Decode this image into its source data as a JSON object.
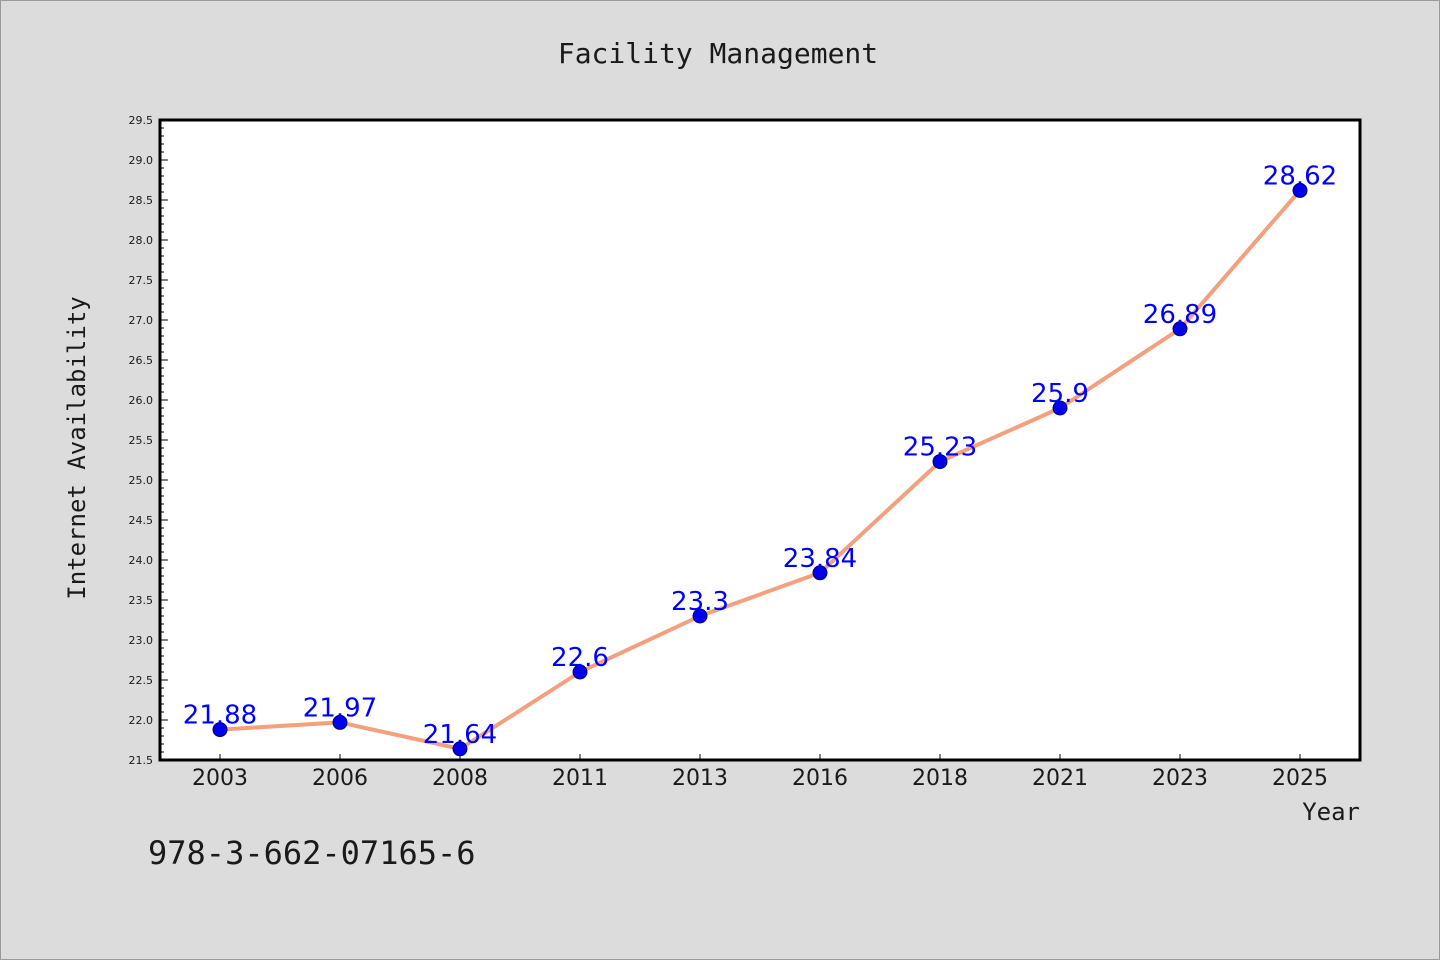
{
  "chart_data": {
    "type": "line",
    "title": "Facility Management",
    "xlabel": "Year",
    "ylabel": "Internet Availability",
    "categories": [
      "2003",
      "2006",
      "2008",
      "2011",
      "2013",
      "2016",
      "2018",
      "2021",
      "2023",
      "2025"
    ],
    "series": [
      {
        "values": [
          21.88,
          21.97,
          21.64,
          22.6,
          23.3,
          23.84,
          25.23,
          25.9,
          26.89,
          28.62
        ],
        "data_labels": [
          "21.88",
          "21.97",
          "21.64",
          "22.6",
          "23.3",
          "23.84",
          "25.23",
          "25.9",
          "26.89",
          "28.62"
        ]
      }
    ],
    "ylim": [
      21.5,
      29.5
    ],
    "yticks": [
      "21.5",
      "22.0",
      "22.5",
      "23.0",
      "23.5",
      "24.0",
      "24.5",
      "25.0",
      "25.5",
      "26.0",
      "26.5",
      "27.0",
      "27.5",
      "28.0",
      "28.5",
      "29.0",
      "29.5"
    ],
    "grid": false,
    "legend": "none",
    "colors": {
      "line": "#f4a07e",
      "marker": "#0000ee",
      "marker_edge": "#000066",
      "data_label": "#0000ff",
      "plot_background": "#ffffff",
      "figure_background": "#dcdcdc",
      "axes": "#000000"
    }
  },
  "footer": {
    "isbn": "978-3-662-07165-6"
  }
}
